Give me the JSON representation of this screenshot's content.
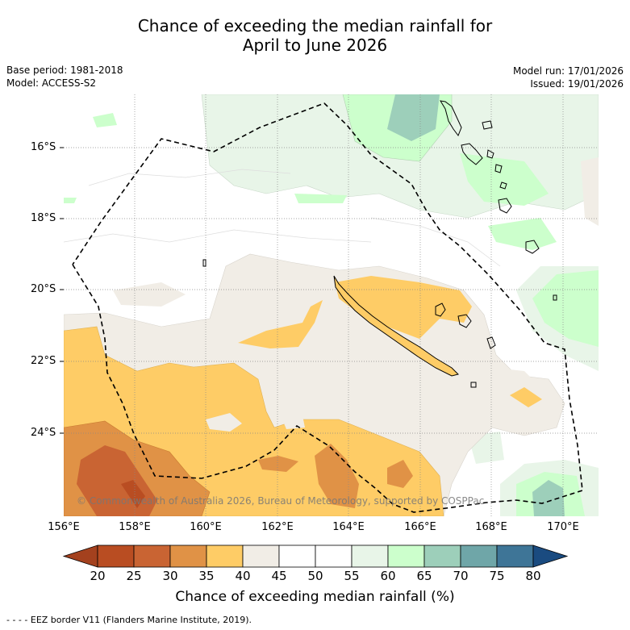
{
  "title": {
    "line1": "Chance of exceeding the median rainfall for",
    "line2": "April to June 2026"
  },
  "meta": {
    "base_period": "Base period: 1981-2018",
    "model": "Model: ACCESS-S2",
    "model_run": "Model run: 17/01/2026",
    "issued": "Issued: 19/01/2026"
  },
  "axes": {
    "lat_labels": [
      "16°S",
      "18°S",
      "20°S",
      "22°S",
      "24°S"
    ],
    "lon_labels": [
      "156°E",
      "158°E",
      "160°E",
      "162°E",
      "164°E",
      "166°E",
      "168°E",
      "170°E"
    ]
  },
  "copyright": "© Commonwealth of Australia 2026, Bureau of Meteorology, supported by COSPPac",
  "colorbar": {
    "ticks": [
      "20",
      "25",
      "30",
      "35",
      "40",
      "45",
      "50",
      "55",
      "60",
      "65",
      "70",
      "75",
      "80"
    ],
    "colors": [
      "#a4411e",
      "#b94d22",
      "#c96433",
      "#e09246",
      "#fecc66",
      "#f1ede6",
      "#ffffff",
      "#ffffff",
      "#e8f5e8",
      "#ccffcc",
      "#9dcfba",
      "#6fa6a8",
      "#3e7597",
      "#1a4b80"
    ],
    "label": "Chance of exceeding median rainfall (%)"
  },
  "legend": {
    "eez": "- -  - -  EEZ border V11 (Flanders Marine Institute, 2019)."
  }
}
